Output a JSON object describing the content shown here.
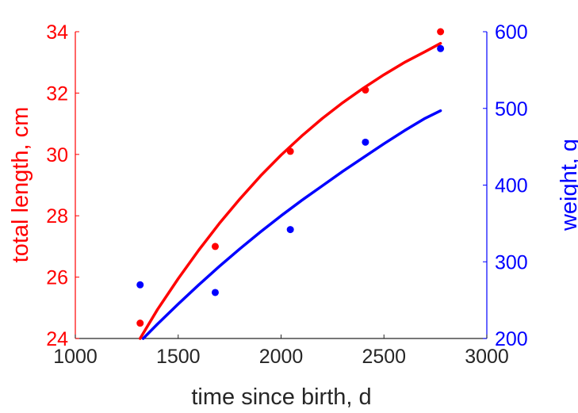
{
  "chart_data": {
    "type": "scatter",
    "xlabel": "time since birth, d",
    "ylabel_left": "total length, cm",
    "ylabel_right": "weight, g",
    "xlim": [
      1000,
      3000
    ],
    "ylim_left": [
      24,
      34
    ],
    "ylim_right": [
      200,
      600
    ],
    "x_ticks": [
      1000,
      1500,
      2000,
      2500,
      3000
    ],
    "y_left_ticks": [
      24,
      26,
      28,
      30,
      32,
      34
    ],
    "y_right_ticks": [
      200,
      300,
      400,
      500,
      600
    ],
    "grid": false,
    "colors": {
      "length": "#ff0000",
      "weight": "#0000ff",
      "axis": "#262626"
    },
    "length_points": {
      "x": [
        1315,
        1680,
        2045,
        2410,
        2775
      ],
      "y": [
        24.5,
        27.0,
        30.1,
        32.1,
        34.0
      ]
    },
    "length_fit": {
      "x": [
        1315,
        1400,
        1500,
        1600,
        1700,
        1800,
        1900,
        2000,
        2100,
        2200,
        2300,
        2400,
        2500,
        2600,
        2700,
        2775
      ],
      "y": [
        24.0,
        24.95,
        25.95,
        26.88,
        27.75,
        28.55,
        29.3,
        29.98,
        30.6,
        31.17,
        31.69,
        32.16,
        32.6,
        33.0,
        33.35,
        33.62
      ]
    },
    "weight_points": {
      "x": [
        1315,
        1680,
        2045,
        2410,
        2775
      ],
      "y": [
        270,
        260,
        342,
        456,
        578
      ]
    },
    "weight_fit": {
      "x": [
        1330,
        1400,
        1500,
        1600,
        1700,
        1800,
        1900,
        2000,
        2100,
        2200,
        2300,
        2400,
        2500,
        2600,
        2700,
        2775
      ],
      "y": [
        200,
        219,
        245,
        270,
        294,
        317,
        339,
        360,
        380,
        399,
        418,
        436,
        454,
        471,
        487,
        497
      ]
    }
  }
}
